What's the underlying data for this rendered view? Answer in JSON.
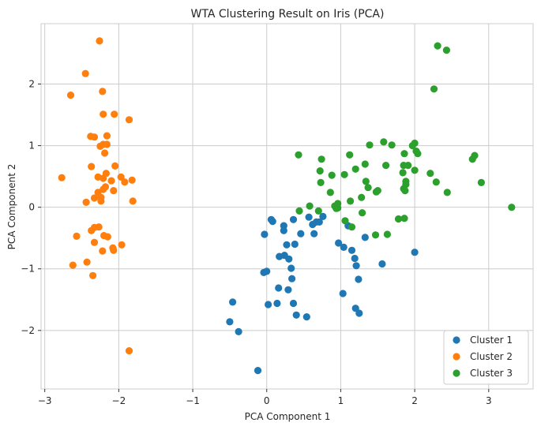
{
  "chart_data": {
    "type": "scatter",
    "title": "WTA Clustering Result on Iris (PCA)",
    "xlabel": "PCA Component 1",
    "ylabel": "PCA Component 2",
    "xlim": [
      -3.05,
      3.6
    ],
    "ylim": [
      -2.95,
      2.98
    ],
    "xticks": [
      -3,
      -2,
      -1,
      0,
      1,
      2,
      3
    ],
    "yticks": [
      -2,
      -1,
      0,
      1,
      2
    ],
    "grid": true,
    "legend_position": "bottom-right",
    "series": [
      {
        "name": "Cluster 1",
        "color": "#1f77b4",
        "points": [
          [
            -0.12,
            -2.65
          ],
          [
            -0.38,
            -2.02
          ],
          [
            -0.5,
            -1.86
          ],
          [
            -0.46,
            -1.54
          ],
          [
            0.02,
            -1.58
          ],
          [
            0.14,
            -1.56
          ],
          [
            0.36,
            -1.56
          ],
          [
            0.4,
            -1.75
          ],
          [
            0.54,
            -1.78
          ],
          [
            0.16,
            -1.31
          ],
          [
            0.29,
            -1.34
          ],
          [
            0.34,
            -1.16
          ],
          [
            -0.04,
            -1.06
          ],
          [
            0.0,
            -1.04
          ],
          [
            0.33,
            -0.99
          ],
          [
            0.17,
            -0.8
          ],
          [
            0.24,
            -0.78
          ],
          [
            0.3,
            -0.84
          ],
          [
            0.27,
            -0.61
          ],
          [
            0.38,
            -0.6
          ],
          [
            0.08,
            -0.23
          ],
          [
            0.06,
            -0.2
          ],
          [
            0.23,
            -0.3
          ],
          [
            0.23,
            -0.38
          ],
          [
            -0.03,
            -0.44
          ],
          [
            0.36,
            -0.2
          ],
          [
            0.46,
            -0.43
          ],
          [
            0.57,
            -0.16
          ],
          [
            0.62,
            -0.28
          ],
          [
            0.64,
            -0.43
          ],
          [
            0.67,
            -0.24
          ],
          [
            0.76,
            -0.15
          ],
          [
            0.71,
            -0.24
          ],
          [
            0.97,
            -0.58
          ],
          [
            1.04,
            -0.65
          ],
          [
            1.1,
            -0.3
          ],
          [
            1.15,
            -0.7
          ],
          [
            1.19,
            -0.83
          ],
          [
            1.21,
            -0.95
          ],
          [
            1.24,
            -1.17
          ],
          [
            1.33,
            -0.49
          ],
          [
            1.56,
            -0.92
          ],
          [
            2.0,
            -0.73
          ],
          [
            1.03,
            -1.4
          ],
          [
            1.2,
            -1.64
          ],
          [
            1.25,
            -1.72
          ]
        ]
      },
      {
        "name": "Cluster 2",
        "color": "#ff7f0e",
        "points": [
          [
            -2.26,
            2.7
          ],
          [
            -2.45,
            2.17
          ],
          [
            -2.22,
            1.88
          ],
          [
            -2.65,
            1.82
          ],
          [
            -2.21,
            1.51
          ],
          [
            -2.06,
            1.51
          ],
          [
            -1.86,
            1.42
          ],
          [
            -2.38,
            1.15
          ],
          [
            -2.33,
            1.14
          ],
          [
            -2.16,
            1.16
          ],
          [
            -2.21,
            1.02
          ],
          [
            -2.25,
            0.99
          ],
          [
            -2.16,
            1.02
          ],
          [
            -2.19,
            0.88
          ],
          [
            -2.37,
            0.66
          ],
          [
            -2.17,
            0.55
          ],
          [
            -2.05,
            0.67
          ],
          [
            -2.28,
            0.49
          ],
          [
            -2.21,
            0.47
          ],
          [
            -2.1,
            0.43
          ],
          [
            -1.97,
            0.49
          ],
          [
            -1.92,
            0.41
          ],
          [
            -1.82,
            0.44
          ],
          [
            -2.77,
            0.48
          ],
          [
            -2.18,
            0.33
          ],
          [
            -2.21,
            0.29
          ],
          [
            -2.07,
            0.27
          ],
          [
            -2.28,
            0.24
          ],
          [
            -2.33,
            0.15
          ],
          [
            -2.24,
            0.16
          ],
          [
            -2.44,
            0.08
          ],
          [
            -2.24,
            0.1
          ],
          [
            -1.81,
            0.1
          ],
          [
            -2.33,
            -0.33
          ],
          [
            -2.37,
            -0.38
          ],
          [
            -2.27,
            -0.32
          ],
          [
            -2.57,
            -0.47
          ],
          [
            -2.2,
            -0.46
          ],
          [
            -2.15,
            -0.48
          ],
          [
            -2.33,
            -0.57
          ],
          [
            -2.08,
            -0.66
          ],
          [
            -2.07,
            -0.7
          ],
          [
            -2.22,
            -0.71
          ],
          [
            -1.96,
            -0.61
          ],
          [
            -2.43,
            -0.89
          ],
          [
            -2.62,
            -0.94
          ],
          [
            -2.35,
            -1.11
          ],
          [
            -1.86,
            -2.33
          ]
        ]
      },
      {
        "name": "Cluster 3",
        "color": "#2ca02c",
        "points": [
          [
            2.31,
            2.62
          ],
          [
            2.43,
            2.55
          ],
          [
            2.26,
            1.92
          ],
          [
            1.58,
            1.06
          ],
          [
            1.69,
            1.01
          ],
          [
            1.39,
            1.01
          ],
          [
            2.0,
            1.04
          ],
          [
            1.97,
            1.0
          ],
          [
            2.02,
            0.91
          ],
          [
            2.04,
            0.87
          ],
          [
            1.86,
            0.87
          ],
          [
            1.12,
            0.85
          ],
          [
            0.43,
            0.85
          ],
          [
            0.74,
            0.78
          ],
          [
            1.33,
            0.7
          ],
          [
            1.61,
            0.68
          ],
          [
            1.85,
            0.68
          ],
          [
            1.91,
            0.68
          ],
          [
            1.2,
            0.62
          ],
          [
            2.0,
            0.6
          ],
          [
            1.84,
            0.56
          ],
          [
            2.81,
            0.84
          ],
          [
            2.78,
            0.78
          ],
          [
            0.72,
            0.59
          ],
          [
            0.88,
            0.52
          ],
          [
            1.05,
            0.53
          ],
          [
            2.21,
            0.55
          ],
          [
            1.34,
            0.42
          ],
          [
            1.88,
            0.42
          ],
          [
            1.88,
            0.37
          ],
          [
            2.29,
            0.41
          ],
          [
            2.9,
            0.4
          ],
          [
            0.73,
            0.4
          ],
          [
            1.85,
            0.3
          ],
          [
            1.87,
            0.27
          ],
          [
            1.37,
            0.32
          ],
          [
            1.5,
            0.27
          ],
          [
            1.48,
            0.25
          ],
          [
            2.44,
            0.24
          ],
          [
            0.86,
            0.24
          ],
          [
            1.28,
            0.16
          ],
          [
            1.13,
            0.1
          ],
          [
            0.96,
            0.06
          ],
          [
            0.92,
            0.02
          ],
          [
            0.96,
            -0.01
          ],
          [
            0.58,
            0.02
          ],
          [
            0.94,
            -0.02
          ],
          [
            1.29,
            -0.09
          ],
          [
            0.44,
            -0.06
          ],
          [
            0.7,
            -0.06
          ],
          [
            1.06,
            -0.22
          ],
          [
            1.15,
            -0.32
          ],
          [
            1.78,
            -0.19
          ],
          [
            1.86,
            -0.18
          ],
          [
            1.47,
            -0.45
          ],
          [
            1.63,
            -0.44
          ],
          [
            3.31,
            0.0
          ]
        ]
      }
    ]
  }
}
